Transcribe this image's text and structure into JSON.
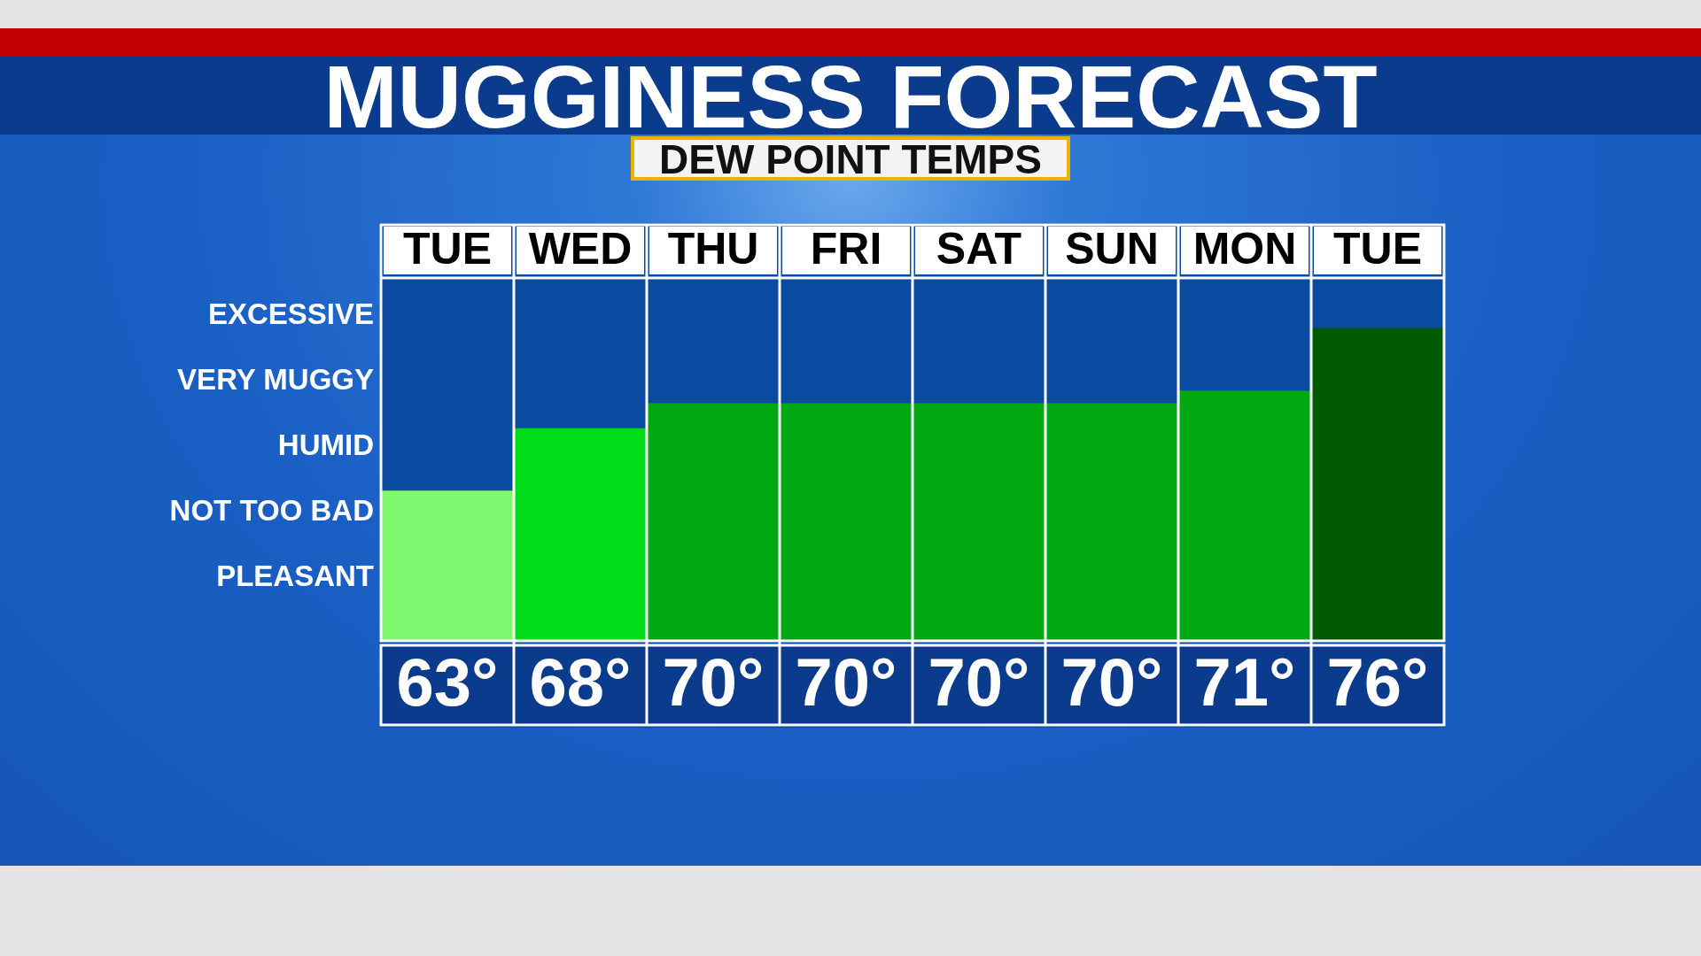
{
  "chart_data": {
    "type": "bar",
    "title": "MUGGINESS FORECAST",
    "subtitle": "DEW POINT TEMPS",
    "categories": [
      "TUE",
      "WED",
      "THU",
      "FRI",
      "SAT",
      "SUN",
      "MON",
      "TUE"
    ],
    "values": [
      63,
      68,
      70,
      70,
      70,
      70,
      71,
      76
    ],
    "value_labels": [
      "63°",
      "68°",
      "70°",
      "70°",
      "70°",
      "70°",
      "71°",
      "76°"
    ],
    "colors": [
      "#7ef86e",
      "#00dd18",
      "#00a912",
      "#00a912",
      "#00a912",
      "#00a912",
      "#00a912",
      "#005a00"
    ],
    "ylim": [
      51,
      80
    ],
    "annotations": [
      "EXCESSIVE",
      "VERY MUGGY",
      "HUMID",
      "NOT TOO BAD",
      "PLEASANT"
    ],
    "legend": false
  }
}
